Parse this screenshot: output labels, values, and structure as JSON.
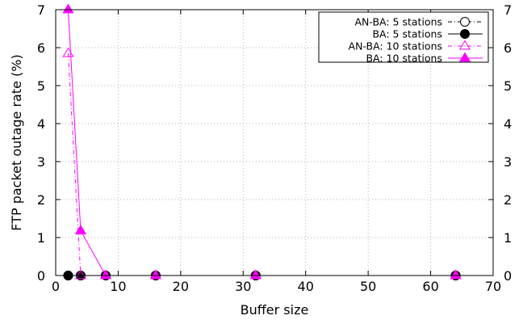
{
  "chart_data": {
    "type": "line",
    "title": "",
    "xlabel": "Buffer size",
    "ylabel": "FTP packet outage rate (%)",
    "xlim": [
      0,
      70
    ],
    "ylim": [
      0,
      7
    ],
    "xticks": [
      "0",
      "10",
      "20",
      "30",
      "40",
      "50",
      "60",
      "70"
    ],
    "yticks": [
      "0",
      "1",
      "2",
      "3",
      "4",
      "5",
      "6",
      "7"
    ],
    "y2ticks": [
      "0",
      "1",
      "2",
      "3",
      "4",
      "5",
      "6",
      "7"
    ],
    "grid": true,
    "legend_position": "top-right",
    "series": [
      {
        "name": "AN-BA: 5 stations",
        "color": "#000000",
        "marker": "open-circle",
        "dash": true,
        "x": [
          2,
          4,
          8,
          16,
          32,
          64
        ],
        "y": [
          0,
          0,
          0,
          0,
          0,
          0
        ]
      },
      {
        "name": "BA: 5 stations",
        "color": "#000000",
        "marker": "filled-circle",
        "dash": false,
        "x": [
          2,
          4,
          8,
          16,
          32,
          64
        ],
        "y": [
          0,
          0,
          0,
          0,
          0,
          0
        ]
      },
      {
        "name": "AN-BA: 10 stations",
        "color": "#ff00ff",
        "marker": "open-triangle",
        "dash": true,
        "x": [
          2,
          4,
          8,
          16,
          32,
          64
        ],
        "y": [
          5.85,
          0,
          0,
          0,
          0,
          0
        ]
      },
      {
        "name": "BA: 10 stations",
        "color": "#ff00ff",
        "marker": "filled-triangle",
        "dash": false,
        "x": [
          2,
          4,
          8,
          16,
          32,
          64
        ],
        "y": [
          7.0,
          1.18,
          0,
          0,
          0,
          0
        ]
      }
    ]
  }
}
